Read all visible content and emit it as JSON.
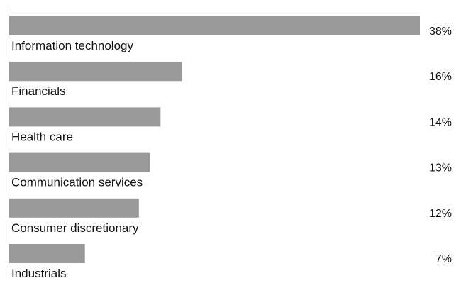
{
  "chart_data": {
    "type": "bar",
    "orientation": "horizontal",
    "categories": [
      "Information technology",
      "Financials",
      "Health care",
      "Communication services",
      "Consumer discretionary",
      "Industrials"
    ],
    "values": [
      38,
      16,
      14,
      13,
      12,
      7
    ],
    "value_labels": [
      "38%",
      "16%",
      "14%",
      "13%",
      "12%",
      "7%"
    ],
    "xlim": [
      0,
      38
    ],
    "bar_color": "#999999",
    "axis_color": "#888888",
    "grid": false,
    "legend": "none"
  }
}
